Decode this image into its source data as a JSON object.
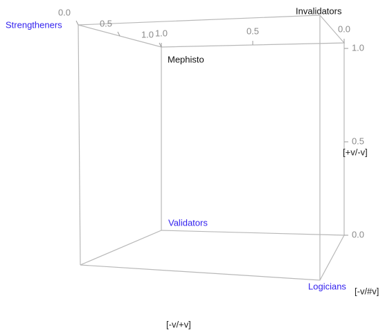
{
  "chart_data": {
    "type": "cube3d",
    "corners": [
      {
        "label": "Strengtheners",
        "color": "#3322ee"
      },
      {
        "label": "Invalidators",
        "color": "#111111"
      },
      {
        "label": "Mephisto",
        "color": "#111111"
      },
      {
        "label": "Validators",
        "color": "#3322ee"
      },
      {
        "label": "Logicians",
        "color": "#3322ee"
      }
    ],
    "axes": [
      {
        "label": "[-v/+v]",
        "lim": [
          0,
          1
        ],
        "ticks": [
          {
            "value": 0,
            "label": "0.0"
          },
          {
            "value": 0.5,
            "label": "0.5"
          },
          {
            "value": 1,
            "label": "1.0"
          }
        ]
      },
      {
        "label": "[-v/#v]",
        "lim": [
          0,
          1
        ],
        "ticks": [
          {
            "value": 0,
            "label": "0.0"
          },
          {
            "value": 0.5,
            "label": "0.5"
          },
          {
            "value": 1,
            "label": "1.0"
          }
        ]
      },
      {
        "label": "[+v/-v]",
        "lim": [
          0,
          1
        ],
        "ticks": [
          {
            "value": 0,
            "label": "0.0"
          },
          {
            "value": 0.5,
            "label": "0.5"
          },
          {
            "value": 1,
            "label": "1.0"
          }
        ]
      }
    ]
  }
}
